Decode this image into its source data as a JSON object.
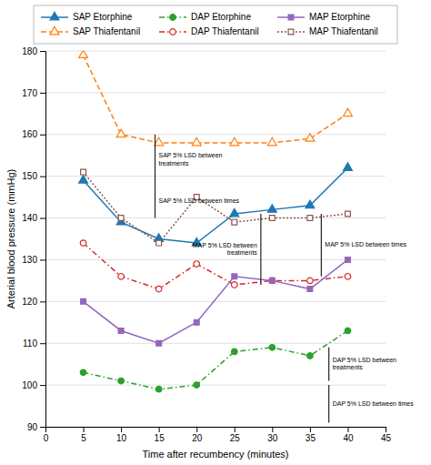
{
  "chart_data": {
    "type": "line",
    "xlabel": "Time after recumbency (minutes)",
    "ylabel": "Arterial blood pressure (mmHg)",
    "x": [
      5,
      10,
      15,
      20,
      25,
      30,
      35,
      40
    ],
    "series": [
      {
        "name": "SAP Etorphine",
        "values": [
          149,
          139,
          135,
          134,
          141,
          142,
          143,
          152
        ],
        "marker": "triangle",
        "line_style": "solid"
      },
      {
        "name": "SAP Thiafentanil",
        "values": [
          179,
          160,
          158,
          158,
          158,
          158,
          159,
          165
        ],
        "marker": "triangle-open",
        "line_style": "dashed"
      },
      {
        "name": "DAP Etorphine",
        "values": [
          103,
          101,
          99,
          100,
          108,
          109,
          107,
          113
        ],
        "marker": "circle",
        "line_style": "dashdot"
      },
      {
        "name": "DAP Thiafentanil",
        "values": [
          134,
          126,
          123,
          129,
          124,
          125,
          125,
          126
        ],
        "marker": "circle-open",
        "line_style": "dashdot"
      },
      {
        "name": "MAP Etorphine",
        "values": [
          120,
          113,
          110,
          115,
          126,
          125,
          123,
          130
        ],
        "marker": "square",
        "line_style": "solid"
      },
      {
        "name": "MAP Thiafentanil",
        "values": [
          151,
          140,
          134,
          145,
          139,
          140,
          140,
          141
        ],
        "marker": "square-open",
        "line_style": "dotted"
      }
    ],
    "xlim": [
      0,
      45
    ],
    "ylim": [
      90,
      180
    ],
    "xticks": [
      0,
      5,
      10,
      15,
      20,
      25,
      30,
      35,
      40,
      45
    ],
    "yticks": [
      90,
      100,
      110,
      120,
      130,
      140,
      150,
      160,
      170,
      180
    ],
    "grid": "y",
    "legend": "top",
    "annotations": [
      {
        "text": "SAP 5% LSD between\ntreatments",
        "x": 14.5,
        "y1": 160,
        "y2": 148
      },
      {
        "text": "SAP 5% LSD between times",
        "x": 14.5,
        "y1": 148,
        "y2": 140
      },
      {
        "text": "MAP 5% LSD between\ntreatments",
        "x": 28.5,
        "y1": 141,
        "y2": 124
      },
      {
        "text": "MAP 5% LSD between times",
        "x": 36.5,
        "y1": 141,
        "y2": 126
      },
      {
        "text": "DAP 5% LSD between\ntreatments",
        "x": 37.5,
        "y1": 109,
        "y2": 101
      },
      {
        "text": "DAP 5% LSD between times",
        "x": 37.5,
        "y1": 100,
        "y2": 91
      }
    ]
  }
}
